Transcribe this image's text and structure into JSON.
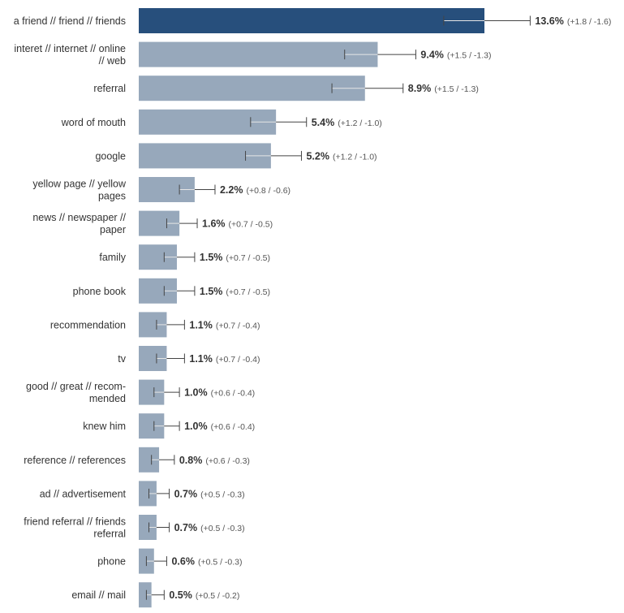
{
  "chart_data": {
    "type": "bar",
    "orientation": "horizontal",
    "title": "",
    "xlabel": "",
    "ylabel": "",
    "unit": "%",
    "xlim": [
      0,
      16.6
    ],
    "grid": false,
    "legend": "none",
    "highlight_color": "#274f7c",
    "bar_color": "#97a8bb",
    "categories": [
      [
        "a friend // friend // friends"
      ],
      [
        "interet // internet // online",
        "// web"
      ],
      [
        "referral"
      ],
      [
        "word of mouth"
      ],
      [
        "google"
      ],
      [
        "yellow page // yellow",
        "pages"
      ],
      [
        "news // newspaper //",
        "paper"
      ],
      [
        "family"
      ],
      [
        "phone book"
      ],
      [
        "recommendation"
      ],
      [
        "tv"
      ],
      [
        "good // great // recom-",
        "mended"
      ],
      [
        "knew him"
      ],
      [
        "reference // references"
      ],
      [
        "ad // advertisement"
      ],
      [
        "friend referral // friends",
        "referral"
      ],
      [
        "phone"
      ],
      [
        "email // mail"
      ]
    ],
    "values": [
      13.6,
      9.4,
      8.9,
      5.4,
      5.2,
      2.2,
      1.6,
      1.5,
      1.5,
      1.1,
      1.1,
      1.0,
      1.0,
      0.8,
      0.7,
      0.7,
      0.6,
      0.5
    ],
    "value_labels": [
      "13.6%",
      "9.4%",
      "8.9%",
      "5.4%",
      "5.2%",
      "2.2%",
      "1.6%",
      "1.5%",
      "1.5%",
      "1.1%",
      "1.1%",
      "1.0%",
      "1.0%",
      "0.8%",
      "0.7%",
      "0.7%",
      "0.6%",
      "0.5%"
    ],
    "error_labels": [
      "(+1.8 / -1.6)",
      "(+1.5 / -1.3)",
      "(+1.5 / -1.3)",
      "(+1.2 / -1.0)",
      "(+1.2 / -1.0)",
      "(+0.8 / -0.6)",
      "(+0.7 / -0.5)",
      "(+0.7 / -0.5)",
      "(+0.7 / -0.5)",
      "(+0.7 / -0.4)",
      "(+0.7 / -0.4)",
      "(+0.6 / -0.4)",
      "(+0.6 / -0.4)",
      "(+0.6 / -0.3)",
      "(+0.5 / -0.3)",
      "(+0.5 / -0.3)",
      "(+0.5 / -0.3)",
      "(+0.5 / -0.2)"
    ],
    "error_plus": [
      1.8,
      1.5,
      1.5,
      1.2,
      1.2,
      0.8,
      0.7,
      0.7,
      0.7,
      0.7,
      0.7,
      0.6,
      0.6,
      0.6,
      0.5,
      0.5,
      0.5,
      0.5
    ],
    "error_minus": [
      1.6,
      1.3,
      1.3,
      1.0,
      1.0,
      0.6,
      0.5,
      0.5,
      0.5,
      0.4,
      0.4,
      0.4,
      0.4,
      0.3,
      0.3,
      0.3,
      0.3,
      0.2
    ]
  }
}
